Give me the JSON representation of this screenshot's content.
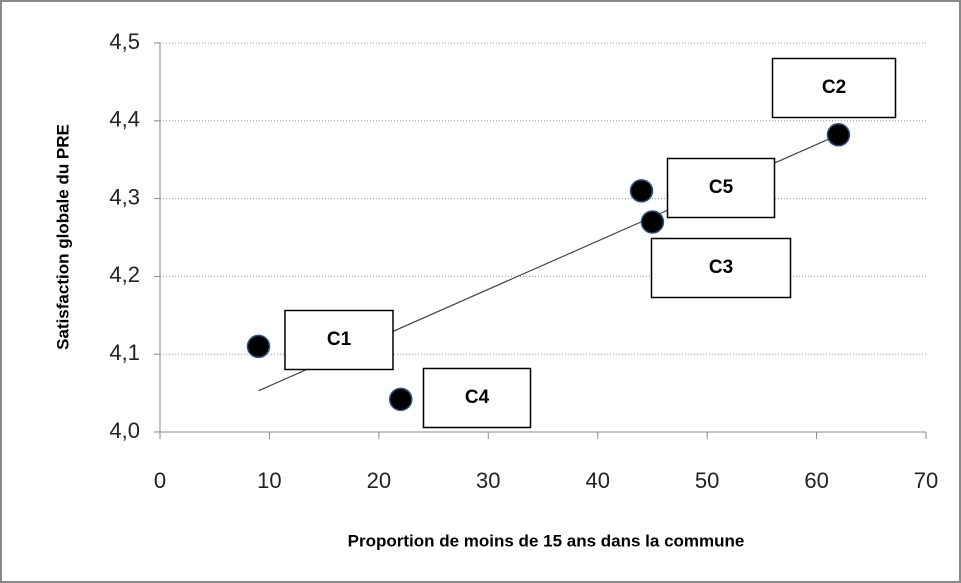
{
  "chart_data": {
    "type": "scatter",
    "xlabel": "Proportion de moins de 15 ans dans la commune",
    "ylabel": "Satisfaction globale du PRE",
    "x": [
      9,
      62,
      45,
      22,
      44
    ],
    "y": [
      4.11,
      4.382,
      4.27,
      4.042,
      4.31
    ],
    "labels": [
      "C1",
      "C2",
      "C3",
      "C4",
      "C5"
    ],
    "color": "#000000",
    "trendline": {
      "x": [
        9,
        62
      ],
      "y": [
        4.053,
        4.382
      ]
    },
    "xlim": [
      0,
      70
    ],
    "xticks": [
      0,
      10,
      20,
      30,
      40,
      50,
      60,
      70
    ],
    "ylim": [
      4.0,
      4.5
    ],
    "yticks": [
      {
        "value": 4.0,
        "label": "4,0"
      },
      {
        "value": 4.1,
        "label": "4,1"
      },
      {
        "value": 4.2,
        "label": "4,2"
      },
      {
        "value": 4.3,
        "label": "4,3"
      },
      {
        "value": 4.4,
        "label": "4,4"
      },
      {
        "value": 4.5,
        "label": "4,5"
      }
    ],
    "grid": true
  }
}
